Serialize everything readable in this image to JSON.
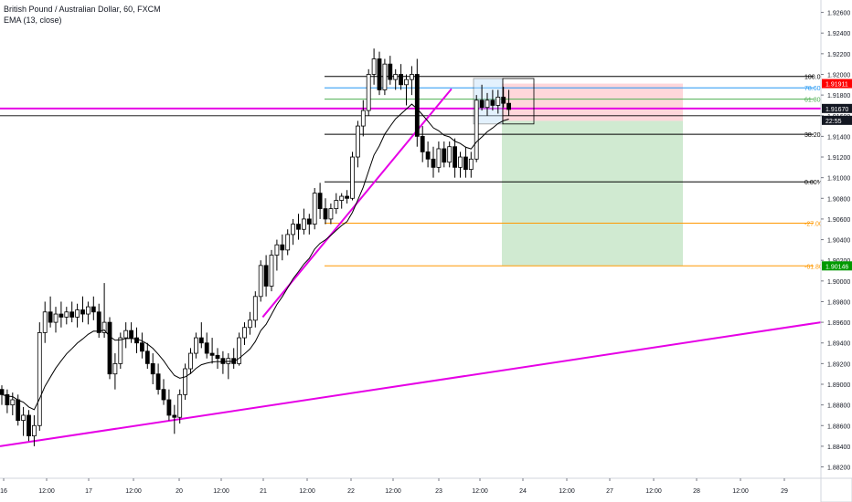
{
  "header": {
    "symbol_title": "British Pound / Australian Dollar, 60, FXCM",
    "indicator_title": "EMA (13, close)"
  },
  "colors": {
    "up_candle": "#ffffff",
    "down_candle": "#000000",
    "candle_border": "#000000",
    "ema": "#000000",
    "trendline": "#e600e6",
    "fib_100": "#000000",
    "fib_786": "#2196f3",
    "fib_618": "#4caf50",
    "fib_382": "#000000",
    "fib_0": "#000000",
    "fib_neg": "#ff9800",
    "target_zone": "#c8e6c9",
    "stop_zone": "#ffcdd2",
    "price_badge_red": "#ff0000",
    "price_badge_green": "#009900",
    "price_badge_black": "#131722"
  },
  "chart_data": {
    "type": "candlestick",
    "y_axis": {
      "ylim": [
        1.8809,
        1.9272
      ],
      "ticks": [
        "1.92600",
        "1.92400",
        "1.92200",
        "1.92000",
        "1.91800",
        "1.91600",
        "1.91400",
        "1.91200",
        "1.91000",
        "1.90800",
        "1.90600",
        "1.90400",
        "1.90200",
        "1.90000",
        "1.89800",
        "1.89600",
        "1.89400",
        "1.89200",
        "1.89000",
        "1.88800",
        "1.88600",
        "1.88400",
        "1.88200"
      ]
    },
    "x_axis": {
      "ticks": [
        "16",
        "12:00",
        "17",
        "12:00",
        "20",
        "12:00",
        "21",
        "12:00",
        "22",
        "12:00",
        "23",
        "12:00",
        "24",
        "12:00",
        "27",
        "12:00",
        "28",
        "12:00",
        "29"
      ]
    },
    "candles": [
      [
        1.8895,
        1.8899,
        1.888,
        1.889
      ],
      [
        1.889,
        1.8895,
        1.8872,
        1.888
      ],
      [
        1.888,
        1.8892,
        1.887,
        1.8885
      ],
      [
        1.8885,
        1.889,
        1.886,
        1.8865
      ],
      [
        1.8865,
        1.8878,
        1.885,
        1.887
      ],
      [
        1.887,
        1.8875,
        1.8845,
        1.885
      ],
      [
        1.885,
        1.887,
        1.884,
        1.886
      ],
      [
        1.886,
        1.896,
        1.8855,
        1.895
      ],
      [
        1.895,
        1.898,
        1.894,
        1.897
      ],
      [
        1.897,
        1.8985,
        1.8955,
        1.896
      ],
      [
        1.896,
        1.8975,
        1.895,
        1.8968
      ],
      [
        1.8968,
        1.898,
        1.8955,
        1.8965
      ],
      [
        1.8965,
        1.8975,
        1.8958,
        1.897
      ],
      [
        1.897,
        1.898,
        1.896,
        1.8965
      ],
      [
        1.8965,
        1.8978,
        1.8955,
        1.8972
      ],
      [
        1.8972,
        1.8985,
        1.896,
        1.8968
      ],
      [
        1.8968,
        1.898,
        1.8958,
        1.8975
      ],
      [
        1.8975,
        1.8985,
        1.8962,
        1.897
      ],
      [
        1.897,
        1.8978,
        1.8945,
        1.895
      ],
      [
        1.895,
        1.8998,
        1.8945,
        1.896
      ],
      [
        1.896,
        1.8965,
        1.8905,
        1.891
      ],
      [
        1.891,
        1.893,
        1.8895,
        1.892
      ],
      [
        1.892,
        1.895,
        1.8915,
        1.8945
      ],
      [
        1.8945,
        1.896,
        1.8935,
        1.8952
      ],
      [
        1.8952,
        1.896,
        1.894,
        1.8945
      ],
      [
        1.8945,
        1.8955,
        1.893,
        1.894
      ],
      [
        1.894,
        1.895,
        1.8925,
        1.8932
      ],
      [
        1.8932,
        1.894,
        1.8915,
        1.892
      ],
      [
        1.892,
        1.893,
        1.89,
        1.891
      ],
      [
        1.891,
        1.892,
        1.889,
        1.8895
      ],
      [
        1.8895,
        1.8905,
        1.888,
        1.8885
      ],
      [
        1.8885,
        1.8895,
        1.8865,
        1.887
      ],
      [
        1.887,
        1.888,
        1.8852,
        1.8868
      ],
      [
        1.8868,
        1.8895,
        1.8862,
        1.889
      ],
      [
        1.889,
        1.892,
        1.8885,
        1.8915
      ],
      [
        1.8915,
        1.8935,
        1.891,
        1.893
      ],
      [
        1.893,
        1.895,
        1.8925,
        1.8945
      ],
      [
        1.8945,
        1.896,
        1.8935,
        1.894
      ],
      [
        1.894,
        1.895,
        1.8925,
        1.893
      ],
      [
        1.893,
        1.8945,
        1.892,
        1.8928
      ],
      [
        1.8928,
        1.8935,
        1.8915,
        1.8925
      ],
      [
        1.8925,
        1.8932,
        1.891,
        1.892
      ],
      [
        1.892,
        1.893,
        1.8905,
        1.8925
      ],
      [
        1.8925,
        1.8935,
        1.8915,
        1.892
      ],
      [
        1.892,
        1.895,
        1.8918,
        1.8945
      ],
      [
        1.8945,
        1.896,
        1.8938,
        1.8955
      ],
      [
        1.8955,
        1.897,
        1.8948,
        1.8962
      ],
      [
        1.8962,
        1.899,
        1.8955,
        1.8985
      ],
      [
        1.8985,
        1.902,
        1.898,
        1.9015
      ],
      [
        1.9015,
        1.9025,
        1.8985,
        1.8995
      ],
      [
        1.8995,
        1.903,
        1.899,
        1.9025
      ],
      [
        1.9025,
        1.904,
        1.901,
        1.9035
      ],
      [
        1.9035,
        1.9045,
        1.902,
        1.903
      ],
      [
        1.903,
        1.905,
        1.9025,
        1.9045
      ],
      [
        1.9045,
        1.906,
        1.9035,
        1.9055
      ],
      [
        1.9055,
        1.9065,
        1.904,
        1.905
      ],
      [
        1.905,
        1.907,
        1.9045,
        1.906
      ],
      [
        1.906,
        1.9065,
        1.9045,
        1.9055
      ],
      [
        1.9055,
        1.909,
        1.905,
        1.9085
      ],
      [
        1.9085,
        1.9095,
        1.906,
        1.907
      ],
      [
        1.907,
        1.908,
        1.9055,
        1.906
      ],
      [
        1.906,
        1.9075,
        1.9055,
        1.907
      ],
      [
        1.907,
        1.9085,
        1.9065,
        1.9078
      ],
      [
        1.9078,
        1.9085,
        1.907,
        1.9082
      ],
      [
        1.9082,
        1.9088,
        1.9075,
        1.908
      ],
      [
        1.908,
        1.9125,
        1.9078,
        1.912
      ],
      [
        1.912,
        1.9155,
        1.911,
        1.915
      ],
      [
        1.915,
        1.9175,
        1.914,
        1.9165
      ],
      [
        1.9165,
        1.9205,
        1.916,
        1.92
      ],
      [
        1.92,
        1.9225,
        1.919,
        1.9215
      ],
      [
        1.9215,
        1.9222,
        1.918,
        1.9185
      ],
      [
        1.9185,
        1.9215,
        1.918,
        1.921
      ],
      [
        1.921,
        1.9218,
        1.919,
        1.9195
      ],
      [
        1.9195,
        1.9205,
        1.9185,
        1.92
      ],
      [
        1.92,
        1.921,
        1.9185,
        1.919
      ],
      [
        1.919,
        1.92,
        1.917,
        1.9195
      ],
      [
        1.9195,
        1.9208,
        1.918,
        1.92
      ],
      [
        1.92,
        1.9215,
        1.913,
        1.914
      ],
      [
        1.914,
        1.915,
        1.9115,
        1.9125
      ],
      [
        1.9125,
        1.9135,
        1.911,
        1.9118
      ],
      [
        1.9118,
        1.913,
        1.91,
        1.911
      ],
      [
        1.911,
        1.9135,
        1.9105,
        1.9128
      ],
      [
        1.9128,
        1.9135,
        1.911,
        1.9115
      ],
      [
        1.9115,
        1.9135,
        1.911,
        1.913
      ],
      [
        1.913,
        1.9138,
        1.91,
        1.911
      ],
      [
        1.911,
        1.9125,
        1.91,
        1.912
      ],
      [
        1.912,
        1.913,
        1.91,
        1.9108
      ],
      [
        1.9108,
        1.9125,
        1.91,
        1.9118
      ],
      [
        1.9118,
        1.918,
        1.9115,
        1.9175
      ],
      [
        1.9175,
        1.919,
        1.9165,
        1.9168
      ],
      [
        1.9168,
        1.9182,
        1.916,
        1.9175
      ],
      [
        1.9175,
        1.9185,
        1.9165,
        1.917
      ],
      [
        1.917,
        1.9185,
        1.9162,
        1.9178
      ],
      [
        1.9178,
        1.9188,
        1.9168,
        1.9172
      ],
      [
        1.9172,
        1.9185,
        1.916,
        1.9166
      ]
    ],
    "ema_period": 13,
    "fib_levels": [
      {
        "label": "100.00%",
        "price": 1.9198,
        "color_key": "fib_100"
      },
      {
        "label": "78.60%(",
        "price": 1.9187,
        "color_key": "fib_786"
      },
      {
        "label": "61.80%(",
        "price": 1.9176,
        "color_key": "fib_618"
      },
      {
        "label": "38.20%(1",
        "price": 1.9142,
        "color_key": "fib_382"
      },
      {
        "label": "0.00%(1.",
        "price": 1.9096,
        "color_key": "fib_0"
      },
      {
        "label": "-27.00%",
        "price": 1.9056,
        "color_key": "fib_neg"
      },
      {
        "label": "-61.80%",
        "price": 1.90146,
        "color_key": "fib_neg"
      }
    ],
    "trendlines": [
      {
        "from": [
          0,
          1.884
        ],
        "to": [
          1.0,
          1.896
        ]
      },
      {
        "from": [
          0.32,
          1.8965
        ],
        "to": [
          0.55,
          1.9186
        ]
      }
    ],
    "horizontal_line_price": 1.9167,
    "position": {
      "entry": 1.9155,
      "stop": 1.91911,
      "target": 1.90146
    },
    "price_labels": [
      {
        "text": "1.91911",
        "price": 1.91911,
        "color_key": "price_badge_red"
      },
      {
        "text": "1.91670",
        "price": 1.9167,
        "color_key": "price_badge_black"
      },
      {
        "text": "22:55",
        "price": 1.91555,
        "color_key": "price_badge_black"
      },
      {
        "text": "1.90146",
        "price": 1.90146,
        "color_key": "price_badge_green"
      }
    ]
  }
}
